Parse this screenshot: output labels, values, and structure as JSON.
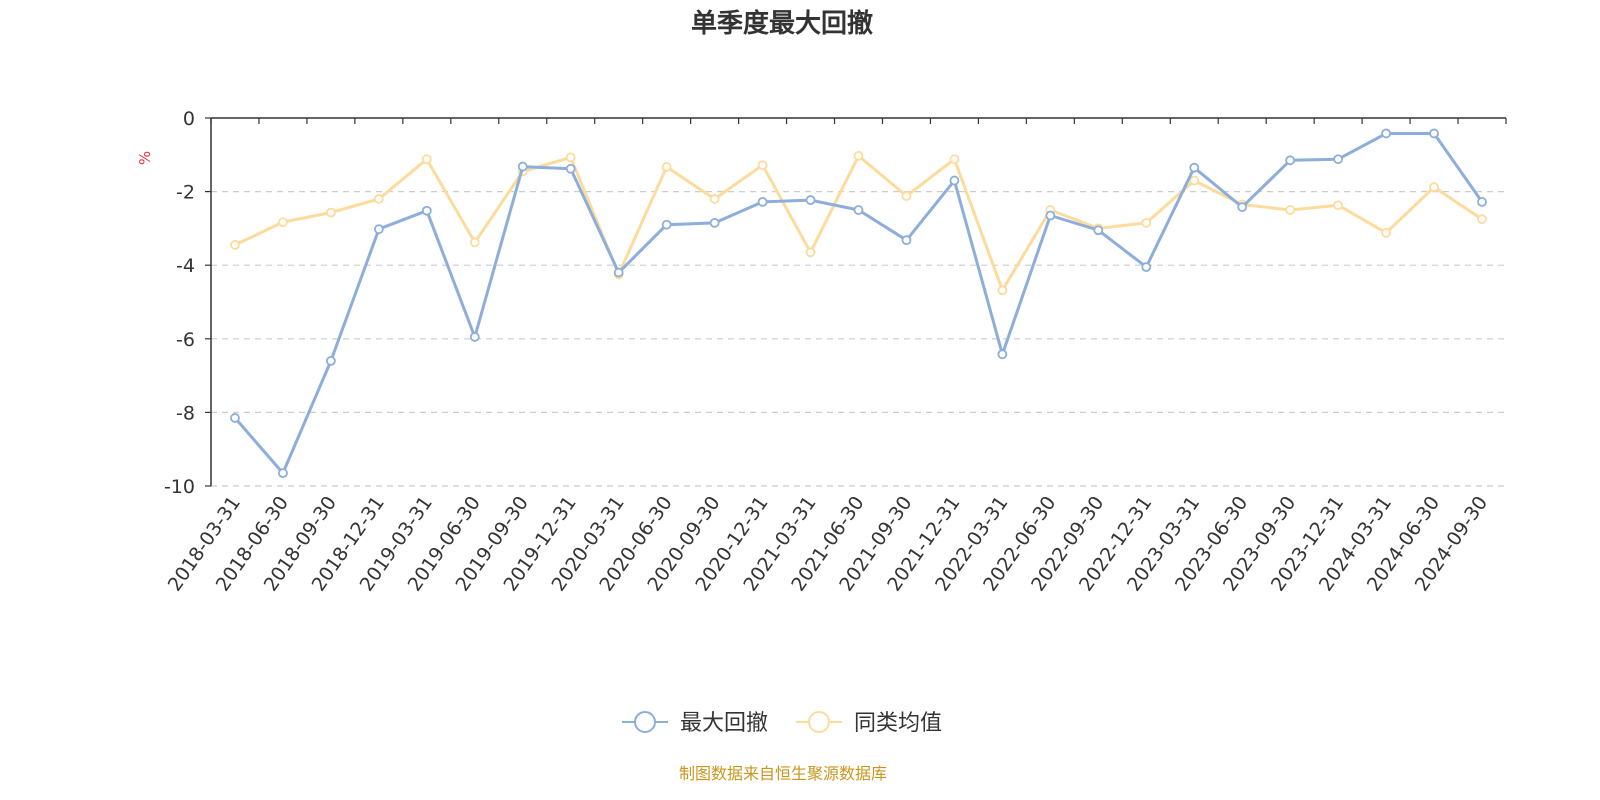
{
  "chart_data": {
    "type": "line",
    "title": "单季度最大回撤",
    "ylabel": "%",
    "ylim": [
      -10,
      0
    ],
    "yticks": [
      "0",
      "-2",
      "-4",
      "-6",
      "-8",
      "-10"
    ],
    "ytick_values": [
      0,
      -2,
      -4,
      -6,
      -8,
      -10
    ],
    "categories": [
      "2018-03-31",
      "2018-06-30",
      "2018-09-30",
      "2018-12-31",
      "2019-03-31",
      "2019-06-30",
      "2019-09-30",
      "2019-12-31",
      "2020-03-31",
      "2020-06-30",
      "2020-09-30",
      "2020-12-31",
      "2021-03-31",
      "2021-06-30",
      "2021-09-30",
      "2021-12-31",
      "2022-03-31",
      "2022-06-30",
      "2022-09-30",
      "2022-12-31",
      "2023-03-31",
      "2023-06-30",
      "2023-09-30",
      "2023-12-31",
      "2024-03-31",
      "2024-06-30",
      "2024-09-30"
    ],
    "series": [
      {
        "name": "最大回撤",
        "color": "#8daedb",
        "values": [
          -8.15,
          -9.65,
          -6.6,
          -3.02,
          -2.52,
          -5.95,
          -1.32,
          -1.38,
          -4.2,
          -2.9,
          -2.85,
          -2.28,
          -2.23,
          -2.5,
          -3.32,
          -1.7,
          -6.42,
          -2.65,
          -3.05,
          -4.05,
          -1.35,
          -2.42,
          -1.15,
          -1.12,
          -0.42,
          -0.42,
          -2.28
        ]
      },
      {
        "name": "同类均值",
        "color": "#fddb9c",
        "values": [
          -3.45,
          -2.83,
          -2.57,
          -2.2,
          -1.12,
          -3.38,
          -1.45,
          -1.07,
          -4.25,
          -1.33,
          -2.2,
          -1.28,
          -3.65,
          -1.03,
          -2.12,
          -1.12,
          -4.68,
          -2.5,
          -3,
          -2.85,
          -1.7,
          -2.35,
          -2.5,
          -2.37,
          -3.12,
          -1.88,
          -2.75
        ]
      }
    ],
    "legend_position": "bottom-center",
    "grid": true
  },
  "footer": {
    "source": "制图数据来自恒生聚源数据库"
  }
}
